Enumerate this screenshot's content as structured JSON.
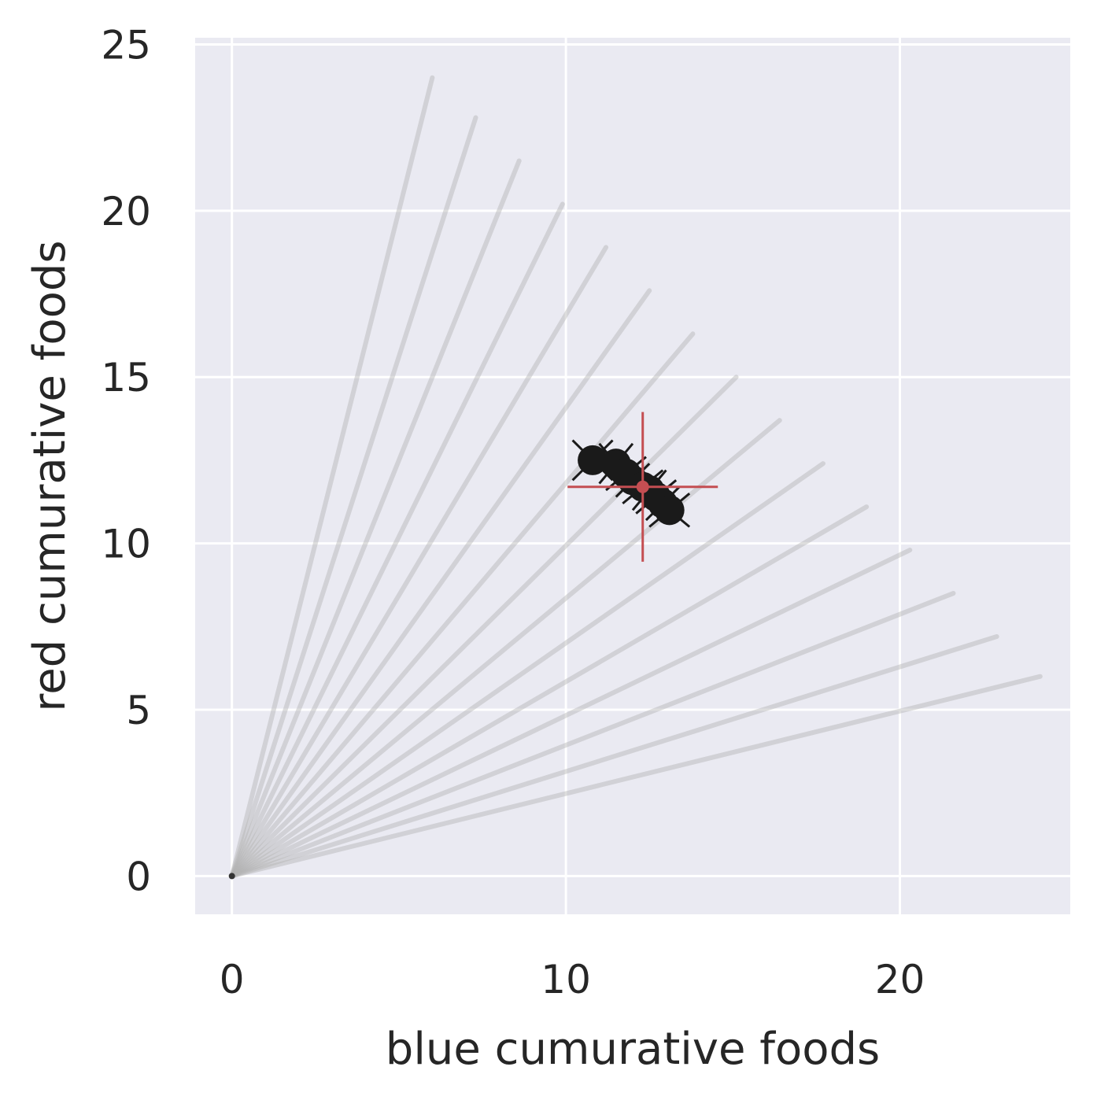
{
  "chart_data": {
    "type": "scatter",
    "title": "",
    "xlabel": "blue cumurative foods",
    "ylabel": "red cumurative foods",
    "xlim": [
      -1.1,
      25.1
    ],
    "ylim": [
      -1.15,
      25.2
    ],
    "xticks": [
      0,
      10,
      20
    ],
    "yticks": [
      0,
      5,
      10,
      15,
      20,
      25
    ],
    "grid": true,
    "background": "#eaeaf2",
    "grid_color": "#ffffff",
    "trajectory_color": "#b4b4b4",
    "point_color": "#1a1a1a",
    "mean_color": "#c44e52",
    "trajectories": [
      {
        "x": [
          0,
          6.0
        ],
        "y": [
          0,
          24.0
        ]
      },
      {
        "x": [
          0,
          7.3
        ],
        "y": [
          0,
          22.8
        ]
      },
      {
        "x": [
          0,
          8.6
        ],
        "y": [
          0,
          21.5
        ]
      },
      {
        "x": [
          0,
          9.9
        ],
        "y": [
          0,
          20.2
        ]
      },
      {
        "x": [
          0,
          11.2
        ],
        "y": [
          0,
          18.9
        ]
      },
      {
        "x": [
          0,
          12.5
        ],
        "y": [
          0,
          17.6
        ]
      },
      {
        "x": [
          0,
          13.8
        ],
        "y": [
          0,
          16.3
        ]
      },
      {
        "x": [
          0,
          15.1
        ],
        "y": [
          0,
          15.0
        ]
      },
      {
        "x": [
          0,
          16.4
        ],
        "y": [
          0,
          13.7
        ]
      },
      {
        "x": [
          0,
          17.7
        ],
        "y": [
          0,
          12.4
        ]
      },
      {
        "x": [
          0,
          19.0
        ],
        "y": [
          0,
          11.1
        ]
      },
      {
        "x": [
          0,
          20.3
        ],
        "y": [
          0,
          9.8
        ]
      },
      {
        "x": [
          0,
          21.6
        ],
        "y": [
          0,
          8.5
        ]
      },
      {
        "x": [
          0,
          22.9
        ],
        "y": [
          0,
          7.2
        ]
      },
      {
        "x": [
          0,
          24.2
        ],
        "y": [
          0,
          6.0
        ]
      }
    ],
    "endpoints": [
      {
        "x": 10.8,
        "y": 12.5,
        "dx": 0.6,
        "dy": 0.6
      },
      {
        "x": 11.5,
        "y": 12.4,
        "dx": 0.5,
        "dy": 0.6
      },
      {
        "x": 11.8,
        "y": 12.1,
        "dx": 0.6,
        "dy": 0.5
      },
      {
        "x": 12.0,
        "y": 11.9,
        "dx": 0.5,
        "dy": 0.5
      },
      {
        "x": 12.3,
        "y": 11.7,
        "dx": 0.6,
        "dy": 0.5
      },
      {
        "x": 12.5,
        "y": 11.6,
        "dx": 0.5,
        "dy": 0.6
      },
      {
        "x": 12.7,
        "y": 11.4,
        "dx": 0.6,
        "dy": 0.5
      },
      {
        "x": 12.9,
        "y": 11.2,
        "dx": 0.5,
        "dy": 0.5
      },
      {
        "x": 13.1,
        "y": 11.0,
        "dx": 0.6,
        "dy": 0.5
      }
    ],
    "mean": {
      "x": 12.3,
      "y": 11.7,
      "xerr": 2.25,
      "yerr": 2.25
    }
  }
}
